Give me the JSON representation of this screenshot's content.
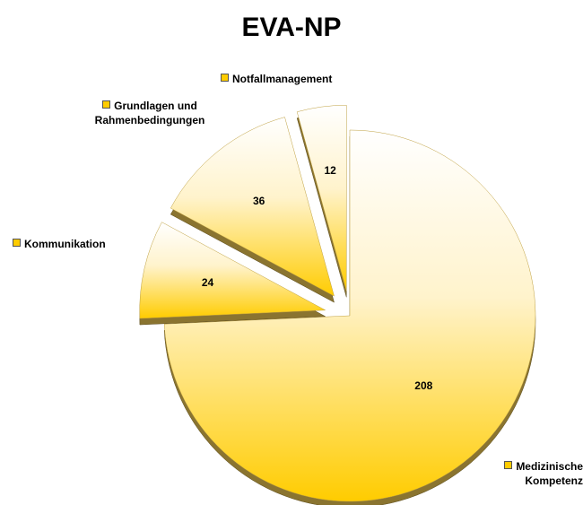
{
  "chart_data": {
    "type": "pie",
    "title": "EVA-NP",
    "categories": [
      "Medizinische Kompetenz",
      "Kommunikation",
      "Grundlagen und Rahmenbedingungen",
      "Notfallmanagement"
    ],
    "values": [
      208,
      24,
      36,
      12
    ],
    "color": "#ffcc00"
  }
}
